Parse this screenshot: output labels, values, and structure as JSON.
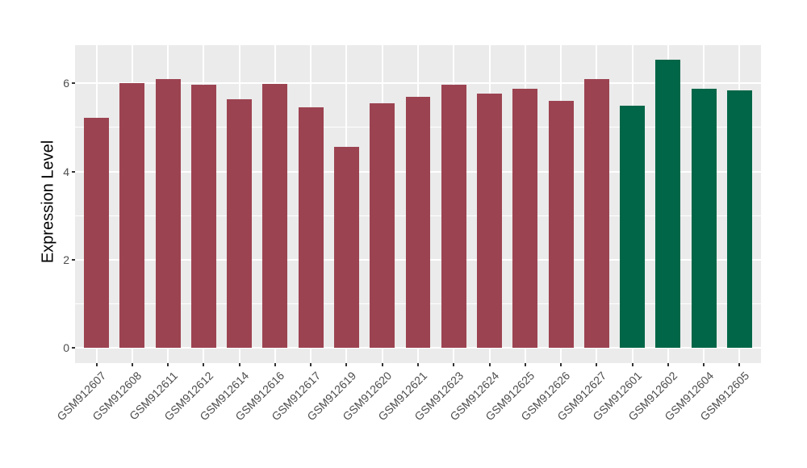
{
  "figure": {
    "background": "#FFFFFF",
    "panel_background": "#EBEBEB",
    "grid_color": "#FFFFFF",
    "axis_text_color": "#4D4D4D",
    "axis_title_color": "#000000",
    "tick_color": "#333333"
  },
  "chart_data": {
    "type": "bar",
    "title": "",
    "xlabel": "",
    "ylabel": "Expression Level",
    "categories": [
      "GSM912607",
      "GSM912608",
      "GSM912611",
      "GSM912612",
      "GSM912614",
      "GSM912616",
      "GSM912617",
      "GSM912619",
      "GSM912620",
      "GSM912621",
      "GSM912623",
      "GSM912624",
      "GSM912625",
      "GSM912626",
      "GSM912627",
      "GSM912601",
      "GSM912602",
      "GSM912604",
      "GSM912605"
    ],
    "values": [
      5.21,
      6.0,
      6.09,
      5.97,
      5.63,
      5.98,
      5.45,
      4.56,
      5.55,
      5.69,
      5.96,
      5.76,
      5.87,
      5.59,
      6.1,
      5.49,
      6.53,
      5.88,
      5.83
    ],
    "bar_groups": [
      "maroon",
      "maroon",
      "maroon",
      "maroon",
      "maroon",
      "maroon",
      "maroon",
      "maroon",
      "maroon",
      "maroon",
      "maroon",
      "maroon",
      "maroon",
      "maroon",
      "maroon",
      "green",
      "green",
      "green",
      "green"
    ],
    "group_colors": {
      "maroon": "#9C4351",
      "green": "#006647"
    },
    "ytick_labels": [
      "0",
      "2",
      "4",
      "6"
    ],
    "ytick_values": [
      0,
      2,
      4,
      6
    ],
    "minor_ytick_values": [
      1,
      3,
      5
    ],
    "ylim": [
      -0.34,
      6.86
    ],
    "bar_width_units": 0.7,
    "grid": true,
    "legend": "none"
  }
}
